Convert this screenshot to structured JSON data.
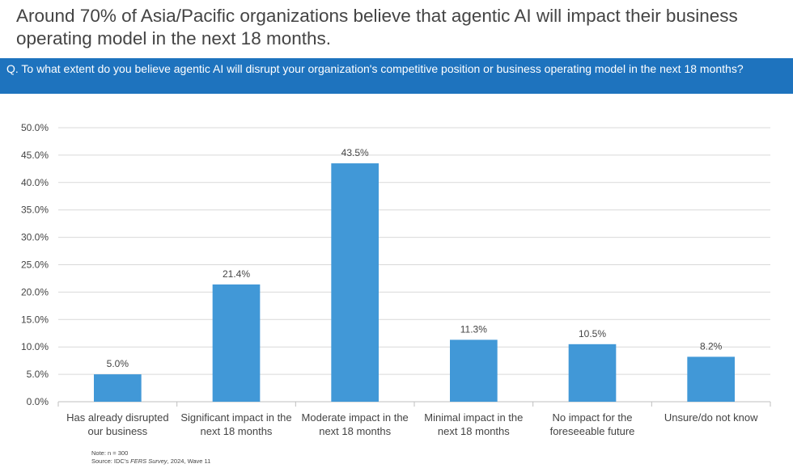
{
  "headline": "Around 70% of Asia/Pacific organizations believe that agentic AI will impact their business operating model in the next 18 months.",
  "question": "Q. To what extent do you believe agentic AI will disrupt your organization's competitive position or business operating model in the next 18 months?",
  "chart_data": {
    "type": "bar",
    "categories": [
      [
        "Has already disrupted",
        "our business"
      ],
      [
        "Significant impact in the",
        "next 18 months"
      ],
      [
        "Moderate impact in the",
        "next 18 months"
      ],
      [
        "Minimal impact in the",
        "next 18 months"
      ],
      [
        "No impact for the",
        "foreseeable future"
      ],
      [
        "Unsure/do not know"
      ]
    ],
    "values": [
      5.0,
      21.4,
      43.5,
      11.3,
      10.5,
      8.2
    ],
    "data_labels": [
      "5.0%",
      "21.4%",
      "43.5%",
      "11.3%",
      "10.5%",
      "8.2%"
    ],
    "ylim": [
      0,
      50
    ],
    "yticks": [
      "0.0%",
      "5.0%",
      "10.0%",
      "15.0%",
      "20.0%",
      "25.0%",
      "30.0%",
      "35.0%",
      "40.0%",
      "45.0%",
      "50.0%"
    ],
    "grid": true,
    "bar_color": "#4198d7"
  },
  "footnote": {
    "note": "Note: n = 300",
    "source_prefix": "Source: IDC's ",
    "source_title": "FERS Survey",
    "source_suffix": ", 2024, Wave 11"
  }
}
